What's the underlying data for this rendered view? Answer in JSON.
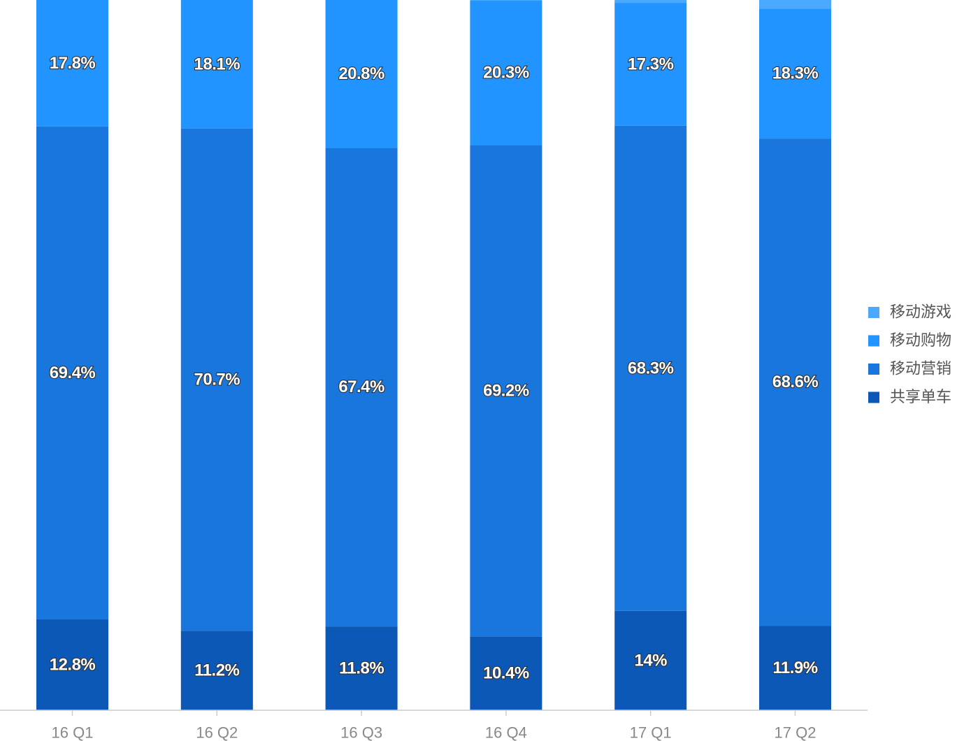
{
  "chart_data": {
    "type": "bar",
    "stacked": true,
    "percent_stacked": true,
    "categories": [
      "16 Q1",
      "16 Q2",
      "16 Q3",
      "16 Q4",
      "17 Q1",
      "17 Q2"
    ],
    "series": [
      {
        "name": "共享单车",
        "color": "#0c58b6",
        "values": [
          12.8,
          11.2,
          11.8,
          10.4,
          14,
          11.9
        ],
        "labels": [
          "12.8%",
          "11.2%",
          "11.8%",
          "10.4%",
          "14%",
          "11.9%"
        ]
      },
      {
        "name": "移动营销",
        "color": "#1976dc",
        "values": [
          69.4,
          70.7,
          67.4,
          69.2,
          68.3,
          68.6
        ],
        "labels": [
          "69.4%",
          "70.7%",
          "67.4%",
          "69.2%",
          "68.3%",
          "68.6%"
        ]
      },
      {
        "name": "移动购物",
        "color": "#2294ff",
        "values": [
          17.8,
          18.1,
          20.8,
          20.3,
          17.3,
          18.3
        ],
        "labels": [
          "17.8%",
          "18.1%",
          "20.8%",
          "20.3%",
          "17.3%",
          "18.3%"
        ]
      },
      {
        "name": "移动游戏",
        "color": "#4aa8ff",
        "values": [
          0.0,
          0.0,
          0.0,
          0.1,
          0.4,
          1.2
        ],
        "labels": [
          "",
          "",
          "",
          "",
          "",
          ""
        ]
      }
    ],
    "legend": {
      "position": "right",
      "order": [
        "移动游戏",
        "移动购物",
        "移动营销",
        "共享单车"
      ]
    },
    "xlabel": "",
    "ylabel": "",
    "ylim": [
      0,
      100
    ],
    "grid": false
  }
}
